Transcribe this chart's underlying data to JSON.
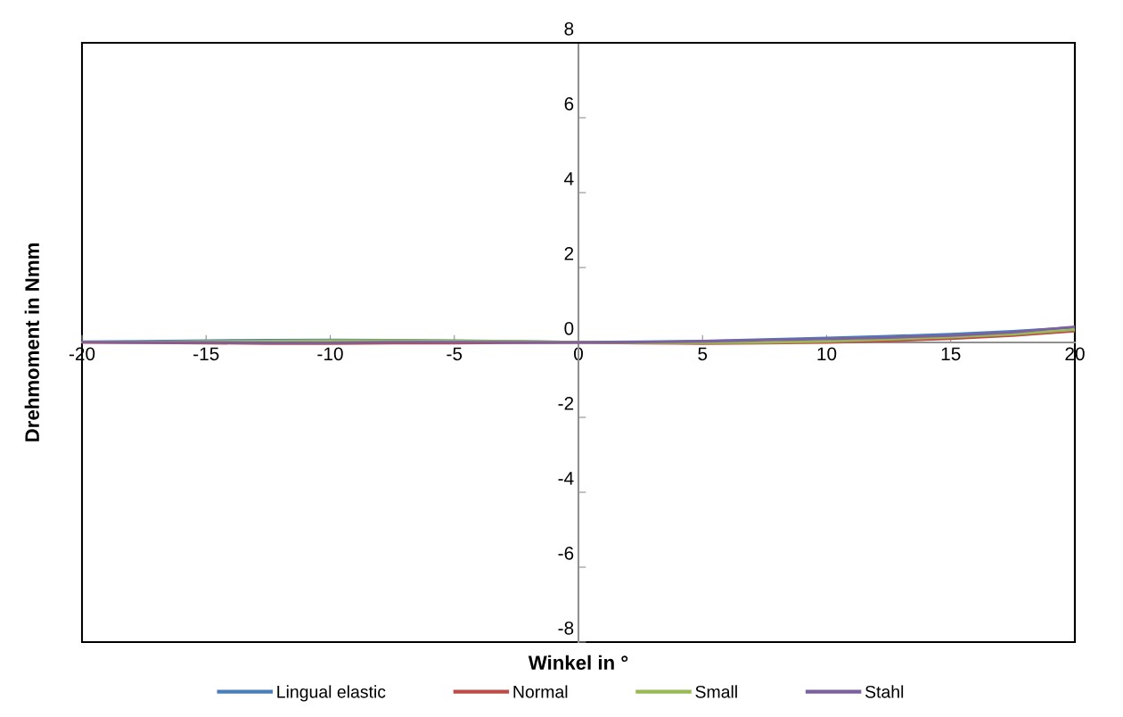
{
  "chart_data": {
    "type": "line",
    "xlabel": "Winkel in °",
    "ylabel": "Drehmoment in Nmm",
    "x": [
      -20,
      -17.5,
      -15,
      -12.5,
      -10,
      -7.5,
      -5,
      -2.5,
      0,
      2.5,
      5,
      7.5,
      10,
      12.5,
      15,
      17.5,
      20
    ],
    "series": [
      {
        "name": "Lingual elastic",
        "color": "#4a7ebb",
        "values": [
          0.02,
          0.03,
          0.05,
          0.06,
          0.07,
          0.06,
          0.05,
          0.03,
          0.01,
          0.02,
          0.04,
          0.08,
          0.12,
          0.17,
          0.22,
          0.3,
          0.4
        ]
      },
      {
        "name": "Normal",
        "color": "#be4b48",
        "values": [
          0.0,
          -0.01,
          -0.02,
          -0.03,
          -0.03,
          -0.02,
          -0.02,
          -0.01,
          0.0,
          -0.02,
          -0.03,
          -0.02,
          0.0,
          0.04,
          0.1,
          0.18,
          0.3
        ]
      },
      {
        "name": "Small",
        "color": "#98b954",
        "values": [
          0.01,
          0.01,
          0.03,
          0.04,
          0.05,
          0.05,
          0.04,
          0.03,
          0.01,
          -0.01,
          -0.01,
          0.0,
          0.03,
          0.08,
          0.14,
          0.22,
          0.34
        ]
      },
      {
        "name": "Stahl",
        "color": "#7d60a0",
        "values": [
          0.01,
          0.0,
          0.0,
          -0.01,
          -0.01,
          0.01,
          0.01,
          0.0,
          0.0,
          0.01,
          0.03,
          0.06,
          0.09,
          0.13,
          0.18,
          0.27,
          0.42
        ]
      }
    ],
    "xlim": [
      -20,
      20
    ],
    "ylim": [
      -8,
      8
    ],
    "xticks": [
      -20,
      -15,
      -10,
      -5,
      0,
      5,
      10,
      15,
      20
    ],
    "yticks": [
      -8,
      -6,
      -4,
      -2,
      0,
      2,
      4,
      6,
      8
    ],
    "grid": false,
    "legend": "bottom",
    "marker": "none",
    "line_style": "solid"
  }
}
